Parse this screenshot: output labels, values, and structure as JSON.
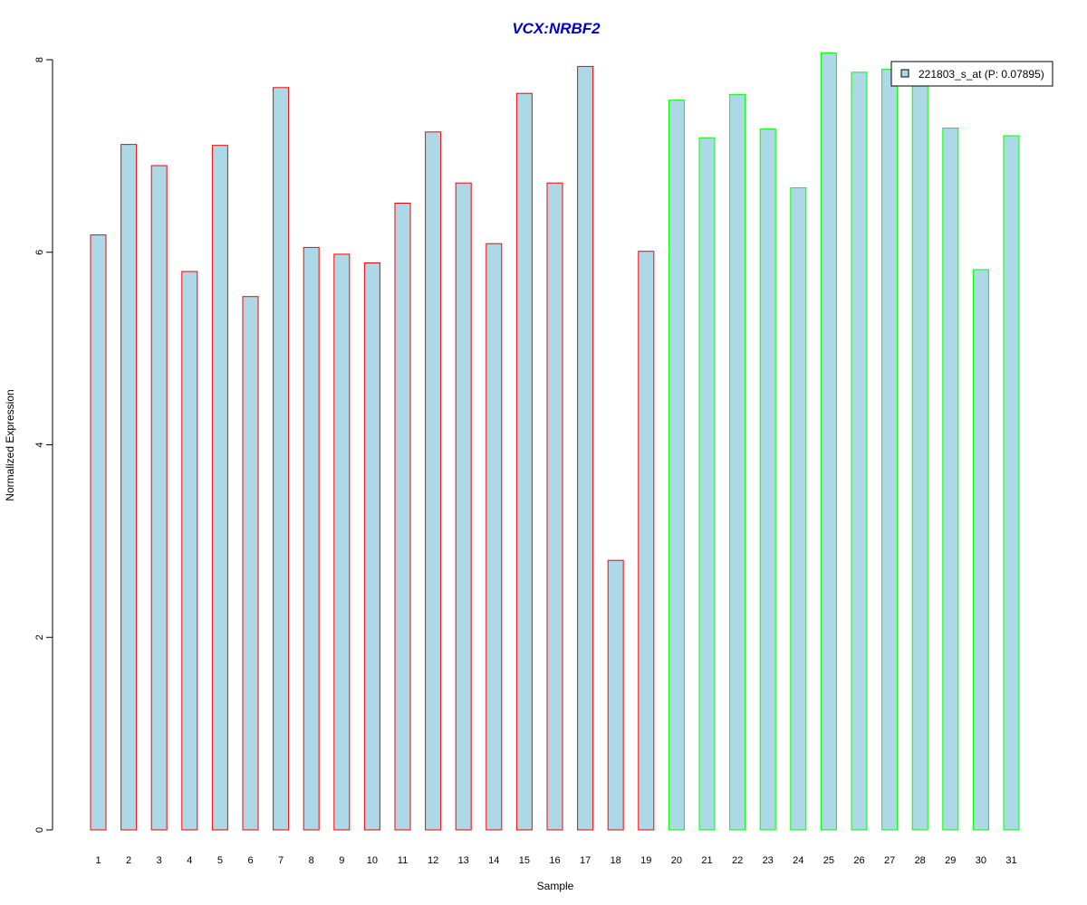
{
  "chart_data": {
    "type": "bar",
    "title": "VCX:NRBF2",
    "xlabel": "Sample",
    "ylabel": "Normalized Expression",
    "categories": [
      "1",
      "2",
      "3",
      "4",
      "5",
      "6",
      "7",
      "8",
      "9",
      "10",
      "11",
      "12",
      "13",
      "14",
      "15",
      "16",
      "17",
      "18",
      "19",
      "20",
      "21",
      "22",
      "23",
      "24",
      "25",
      "26",
      "27",
      "28",
      "29",
      "30",
      "31"
    ],
    "values": [
      6.18,
      7.12,
      6.9,
      5.8,
      7.11,
      5.54,
      7.71,
      6.05,
      5.98,
      5.89,
      6.51,
      7.25,
      6.72,
      6.09,
      7.65,
      6.72,
      7.93,
      2.8,
      6.01,
      7.58,
      7.19,
      7.64,
      7.28,
      6.67,
      8.07,
      7.87,
      7.9,
      7.85,
      7.29,
      5.82,
      7.21
    ],
    "groups": [
      1,
      1,
      1,
      1,
      1,
      1,
      1,
      1,
      1,
      1,
      1,
      1,
      1,
      1,
      1,
      1,
      1,
      1,
      1,
      2,
      2,
      2,
      2,
      2,
      2,
      2,
      2,
      2,
      2,
      2,
      2
    ],
    "ylim": [
      0,
      8
    ],
    "yticks": [
      0,
      2,
      4,
      6,
      8
    ],
    "legend": {
      "label": "221803_s_at (P: 0.07895)",
      "placement": "top-right"
    },
    "colors": {
      "fill": "#add8e6",
      "group1_border": "#ff0000",
      "group2_border": "#00ff00",
      "title": "#0000cd"
    }
  }
}
